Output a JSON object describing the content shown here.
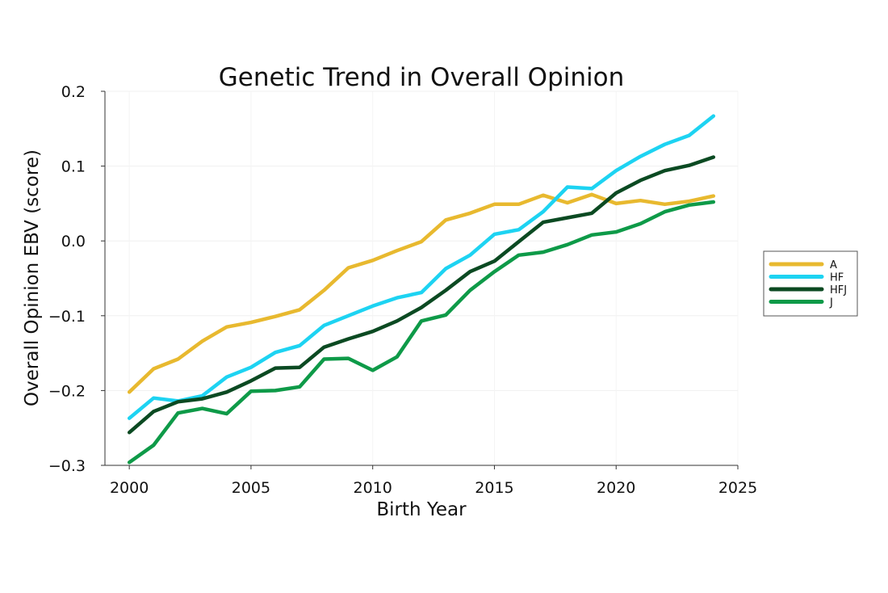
{
  "chart_data": {
    "type": "line",
    "title": "Genetic Trend in Overall Opinion",
    "xlabel": "Birth Year",
    "ylabel": "Overall Opinion EBV (score)",
    "xlim": [
      1999,
      2025
    ],
    "ylim": [
      -0.3,
      0.2
    ],
    "xticks": [
      2000,
      2005,
      2010,
      2015,
      2020,
      2025
    ],
    "xtick_labels": [
      "2000",
      "2005",
      "2010",
      "2015",
      "2020",
      "2025"
    ],
    "yticks": [
      -0.3,
      -0.2,
      -0.1,
      0.0,
      0.1,
      0.2
    ],
    "ytick_labels": [
      "−0.3",
      "−0.2",
      "−0.1",
      "0.0",
      "0.1",
      "0.2"
    ],
    "grid": true,
    "legend_position": "right",
    "x": [
      2000,
      2001,
      2002,
      2003,
      2004,
      2005,
      2006,
      2007,
      2008,
      2009,
      2010,
      2011,
      2012,
      2013,
      2014,
      2015,
      2016,
      2017,
      2018,
      2019,
      2020,
      2021,
      2022,
      2023,
      2024
    ],
    "series": [
      {
        "name": "A",
        "color": "#E8B92F",
        "values": [
          -0.202,
          -0.171,
          -0.158,
          -0.134,
          -0.115,
          -0.109,
          -0.101,
          -0.092,
          -0.066,
          -0.036,
          -0.026,
          -0.013,
          -0.001,
          0.028,
          0.037,
          0.049,
          0.049,
          0.061,
          0.051,
          0.062,
          0.05,
          0.054,
          0.049,
          0.053,
          0.06
        ]
      },
      {
        "name": "HF",
        "color": "#1DD3F2",
        "values": [
          -0.237,
          -0.21,
          -0.214,
          -0.207,
          -0.182,
          -0.169,
          -0.149,
          -0.14,
          -0.113,
          -0.1,
          -0.087,
          -0.076,
          -0.069,
          -0.037,
          -0.019,
          0.009,
          0.015,
          0.039,
          0.072,
          0.07,
          0.094,
          0.113,
          0.129,
          0.141,
          0.167
        ]
      },
      {
        "name": "HFJ",
        "color": "#0B4A22",
        "values": [
          -0.256,
          -0.228,
          -0.215,
          -0.211,
          -0.202,
          -0.187,
          -0.17,
          -0.169,
          -0.142,
          -0.131,
          -0.121,
          -0.107,
          -0.089,
          -0.066,
          -0.041,
          -0.027,
          -0.001,
          0.025,
          0.031,
          0.037,
          0.064,
          0.081,
          0.094,
          0.101,
          0.112
        ]
      },
      {
        "name": "J",
        "color": "#0E9A48",
        "values": [
          -0.296,
          -0.273,
          -0.23,
          -0.224,
          -0.231,
          -0.201,
          -0.2,
          -0.195,
          -0.158,
          -0.157,
          -0.173,
          -0.155,
          -0.107,
          -0.099,
          -0.066,
          -0.041,
          -0.019,
          -0.015,
          -0.005,
          0.008,
          0.012,
          0.023,
          0.039,
          0.048,
          0.052
        ]
      }
    ]
  }
}
